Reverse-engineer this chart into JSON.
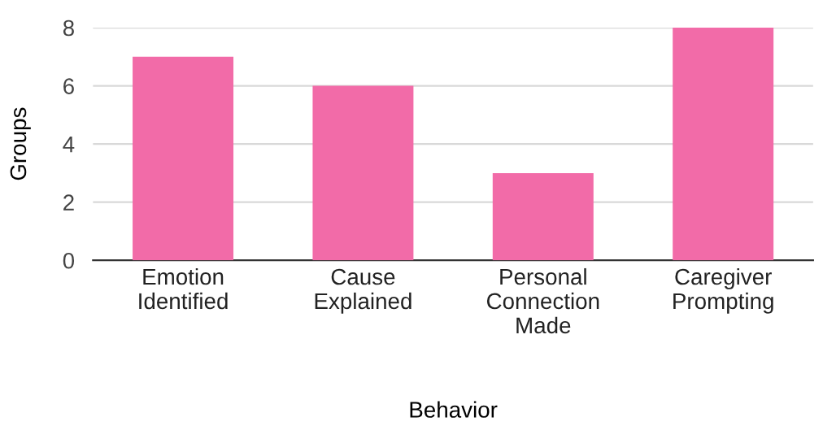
{
  "chart_data": {
    "type": "bar",
    "xlabel": "Behavior",
    "ylabel": "Groups",
    "categories": [
      "Emotion\nIdentified",
      "Cause\nExplained",
      "Personal\nConnection\nMade",
      "Caregiver\nPrompting"
    ],
    "values": [
      7,
      6,
      3,
      8
    ],
    "color": "#f26ba8",
    "ylim": [
      0,
      8
    ],
    "yticks": [
      0,
      2,
      4,
      6,
      8
    ],
    "grid": "y",
    "legend": false
  }
}
